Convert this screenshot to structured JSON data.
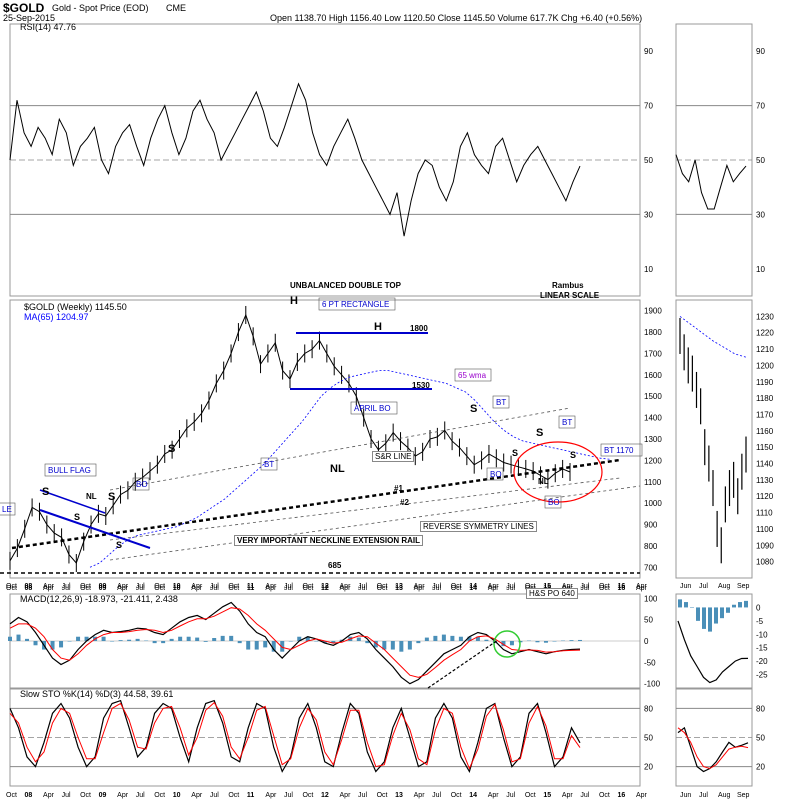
{
  "header": {
    "symbol": "$GOLD",
    "name": "Gold - Spot Price (EOD)",
    "exchange": "CME",
    "date": "25-Sep-2015",
    "ohlc": "Open 1138.70  High 1156.40  Low 1120.50  Close 1145.50  Volume 617.7K  Chg +6.40 (+0.56%)"
  },
  "labels": {
    "rsi": "RSI(14) 47.76",
    "price_legend": "$GOLD (Weekly) 1145.50",
    "ma_legend": "MA(65) 1204.97",
    "macd": "MACD(12,26,9) -18.973, -21.411, 2.438",
    "sto": "Slow STO %K(14) %D(3) 44.58, 39.61"
  },
  "annotations": {
    "unbalanced": "UNBALANCED DOUBLE TOP",
    "rambus": "Rambus",
    "linear": "LINEAR SCALE",
    "rect6": "6 PT RECTANGLE",
    "v1800": "1800",
    "v1530": "1530",
    "aprilbo": "APRIL BO",
    "wma": "65 wma",
    "bullflag": "BULL FLAG",
    "nl": "NL",
    "srline": "S&R LINE",
    "n1": "#1",
    "n2": "#2",
    "neckline": "VERY IMPORTANT NECKLINE EXTENSION RAIL",
    "revsym": "REVERSE SYMMETRY LINES",
    "v685": "685",
    "hspo": "H&S PO 640",
    "bt1170": "BT 1170",
    "bt": "BT",
    "bo": "BO",
    "s": "S",
    "h": "H",
    "le": "LE"
  },
  "colors": {
    "price": "#000000",
    "ma": "#0000ff",
    "signal": "#ff0000",
    "hist": "#4a8fb8",
    "rsi_fill": "#4a7a4a",
    "circle": "#ff0000"
  },
  "chart_data": [
    {
      "type": "line",
      "name": "RSI(14)",
      "ylim": [
        0,
        100
      ],
      "yticks": [
        10,
        30,
        50,
        70,
        90
      ],
      "inset_xticks": [
        "Jun",
        "Jul",
        "Aug",
        "Sep"
      ],
      "xticks": [
        "Oct",
        "08",
        "Apr",
        "Jul",
        "Oct",
        "09",
        "Apr",
        "Jul",
        "Oct",
        "10",
        "Apr",
        "Jul",
        "Oct",
        "11",
        "Apr",
        "Jul",
        "Oct",
        "12",
        "Apr",
        "Jul",
        "Oct",
        "13",
        "Apr",
        "Jul",
        "Oct",
        "14",
        "Apr",
        "Jul",
        "Oct",
        "15",
        "Apr",
        "Jul",
        "Oct",
        "16",
        "Apr"
      ],
      "values": [
        50,
        72,
        60,
        55,
        62,
        58,
        52,
        65,
        60,
        48,
        55,
        58,
        62,
        50,
        45,
        55,
        60,
        63,
        55,
        48,
        58,
        65,
        70,
        60,
        52,
        58,
        68,
        72,
        65,
        60,
        50,
        55,
        60,
        65,
        70,
        75,
        68,
        58,
        55,
        62,
        70,
        78,
        72,
        60,
        52,
        48,
        55,
        60,
        65,
        58,
        50,
        45,
        40,
        35,
        30,
        38,
        22,
        35,
        45,
        50,
        48,
        40,
        35,
        42,
        55,
        60,
        52,
        48,
        45,
        55,
        58,
        50,
        42,
        48,
        52,
        55,
        50,
        45,
        40,
        35,
        42,
        47.76
      ],
      "inset": [
        52,
        45,
        42,
        50,
        38,
        32,
        32,
        40,
        48,
        42,
        45,
        47.76
      ]
    },
    {
      "type": "line",
      "name": "$GOLD (Weekly)",
      "ylim": [
        650,
        1950
      ],
      "yticks": [
        700,
        800,
        900,
        1000,
        1100,
        1200,
        1300,
        1400,
        1500,
        1600,
        1700,
        1800,
        1900
      ],
      "inset_yticks": [
        1080,
        1090,
        1100,
        1110,
        1120,
        1130,
        1140,
        1150,
        1160,
        1170,
        1180,
        1190,
        1200,
        1210,
        1220,
        1230
      ],
      "values": [
        730,
        790,
        880,
        980,
        960,
        900,
        860,
        840,
        760,
        720,
        820,
        900,
        950,
        940,
        990,
        1040,
        1060,
        1100,
        1120,
        1150,
        1180,
        1230,
        1250,
        1300,
        1350,
        1380,
        1420,
        1480,
        1560,
        1620,
        1700,
        1800,
        1880,
        1780,
        1650,
        1700,
        1750,
        1620,
        1580,
        1660,
        1700,
        1720,
        1760,
        1700,
        1640,
        1600,
        1560,
        1500,
        1400,
        1300,
        1250,
        1280,
        1330,
        1290,
        1260,
        1220,
        1240,
        1300,
        1310,
        1340,
        1290,
        1260,
        1220,
        1180,
        1200,
        1230,
        1210,
        1190,
        1180,
        1170,
        1160,
        1150,
        1130,
        1110,
        1140,
        1160,
        1145.5
      ],
      "ma65": [
        700,
        720,
        760,
        800,
        830,
        850,
        860,
        870,
        880,
        890,
        910,
        930,
        960,
        990,
        1020,
        1060,
        1100,
        1140,
        1180,
        1230,
        1280,
        1330,
        1380,
        1440,
        1500,
        1540,
        1570,
        1590,
        1600,
        1610,
        1620,
        1620,
        1610,
        1600,
        1590,
        1580,
        1570,
        1560,
        1540,
        1520,
        1480,
        1430,
        1380,
        1340,
        1310,
        1290,
        1280,
        1270,
        1260,
        1250,
        1240,
        1230,
        1220,
        1210,
        1204.97
      ],
      "inset_values": [
        1218,
        1208,
        1200,
        1195,
        1185,
        1175,
        1150,
        1140,
        1125,
        1100,
        1090,
        1115,
        1125,
        1130,
        1120,
        1135,
        1145.5
      ],
      "inset_ma": [
        1230,
        1225,
        1220,
        1215,
        1211,
        1207,
        1205
      ]
    },
    {
      "type": "line",
      "name": "MACD(12,26,9)",
      "ylim": [
        -110,
        110
      ],
      "yticks": [
        100,
        50,
        0,
        -50,
        -100
      ],
      "inset_yticks": [
        0,
        -5,
        -10,
        -15,
        -20,
        -25
      ],
      "values": [
        40,
        55,
        45,
        20,
        -10,
        -40,
        -55,
        -45,
        -20,
        0,
        15,
        25,
        20,
        22,
        25,
        30,
        28,
        20,
        15,
        30,
        45,
        55,
        60,
        50,
        65,
        80,
        90,
        70,
        40,
        20,
        10,
        -20,
        -40,
        -20,
        0,
        10,
        5,
        -5,
        -10,
        0,
        15,
        20,
        5,
        -20,
        -40,
        -60,
        -85,
        -100,
        -90,
        -70,
        -50,
        -30,
        -20,
        -10,
        10,
        20,
        15,
        0,
        -20,
        -30,
        -25,
        -20,
        -25,
        -30,
        -25,
        -22,
        -20,
        -18.973
      ],
      "signal": [
        30,
        40,
        40,
        30,
        10,
        -20,
        -40,
        -45,
        -30,
        -10,
        5,
        15,
        20,
        20,
        22,
        25,
        27,
        25,
        20,
        25,
        35,
        45,
        52,
        52,
        58,
        68,
        78,
        75,
        60,
        40,
        25,
        5,
        -15,
        -20,
        -10,
        0,
        5,
        0,
        -5,
        -3,
        5,
        12,
        10,
        -5,
        -20,
        -40,
        -60,
        -80,
        -85,
        -78,
        -62,
        -45,
        -32,
        -20,
        0,
        10,
        12,
        5,
        -8,
        -20,
        -22,
        -21,
        -22,
        -26,
        -25,
        -23,
        -22,
        -21.411
      ],
      "hist_values": [
        10,
        15,
        5,
        -10,
        -20,
        -20,
        -15,
        0,
        10,
        10,
        10,
        10,
        0,
        2,
        3,
        5,
        1,
        -5,
        -5,
        5,
        10,
        10,
        8,
        -2,
        7,
        12,
        12,
        -5,
        -20,
        -20,
        -15,
        -25,
        -25,
        0,
        10,
        10,
        0,
        -5,
        -5,
        3,
        10,
        8,
        -5,
        -15,
        -20,
        -20,
        -25,
        -20,
        -5,
        8,
        12,
        15,
        12,
        10,
        10,
        10,
        3,
        -5,
        -12,
        -10,
        -3,
        1,
        -3,
        -4,
        0,
        1,
        2,
        2.438
      ],
      "inset_values": [
        -5,
        -12,
        -18,
        -22,
        -26,
        -28,
        -27,
        -24,
        -22,
        -20,
        -19,
        -18.973
      ],
      "inset_hist": [
        3,
        2,
        0,
        -5,
        -8,
        -9,
        -6,
        -4,
        -2,
        1,
        2,
        2.438
      ]
    },
    {
      "type": "line",
      "name": "Slow STO %K(14) %D(3)",
      "ylim": [
        0,
        100
      ],
      "yticks": [
        80,
        50,
        20
      ],
      "values": [
        80,
        60,
        30,
        20,
        45,
        75,
        85,
        70,
        40,
        20,
        30,
        70,
        85,
        88,
        60,
        30,
        40,
        75,
        85,
        80,
        50,
        25,
        60,
        85,
        88,
        65,
        30,
        25,
        60,
        85,
        80,
        40,
        15,
        30,
        70,
        85,
        60,
        25,
        20,
        55,
        85,
        75,
        35,
        15,
        25,
        60,
        80,
        50,
        20,
        25,
        70,
        85,
        70,
        30,
        15,
        45,
        80,
        85,
        50,
        20,
        30,
        75,
        85,
        55,
        20,
        30,
        60,
        44.58
      ],
      "d": [
        75,
        65,
        40,
        25,
        35,
        65,
        80,
        75,
        50,
        28,
        28,
        55,
        80,
        85,
        68,
        40,
        38,
        65,
        80,
        82,
        60,
        32,
        50,
        78,
        86,
        72,
        40,
        28,
        50,
        78,
        82,
        52,
        22,
        28,
        60,
        80,
        68,
        35,
        22,
        48,
        78,
        78,
        45,
        20,
        22,
        52,
        75,
        58,
        28,
        22,
        58,
        80,
        75,
        40,
        18,
        38,
        72,
        84,
        58,
        25,
        28,
        65,
        82,
        62,
        28,
        28,
        52,
        39.61
      ],
      "inset_values": [
        55,
        60,
        40,
        20,
        15,
        18,
        25,
        35,
        45,
        40,
        42,
        44.58
      ],
      "inset_d": [
        60,
        55,
        45,
        30,
        20,
        18,
        22,
        30,
        38,
        40,
        41,
        39.61
      ]
    }
  ]
}
